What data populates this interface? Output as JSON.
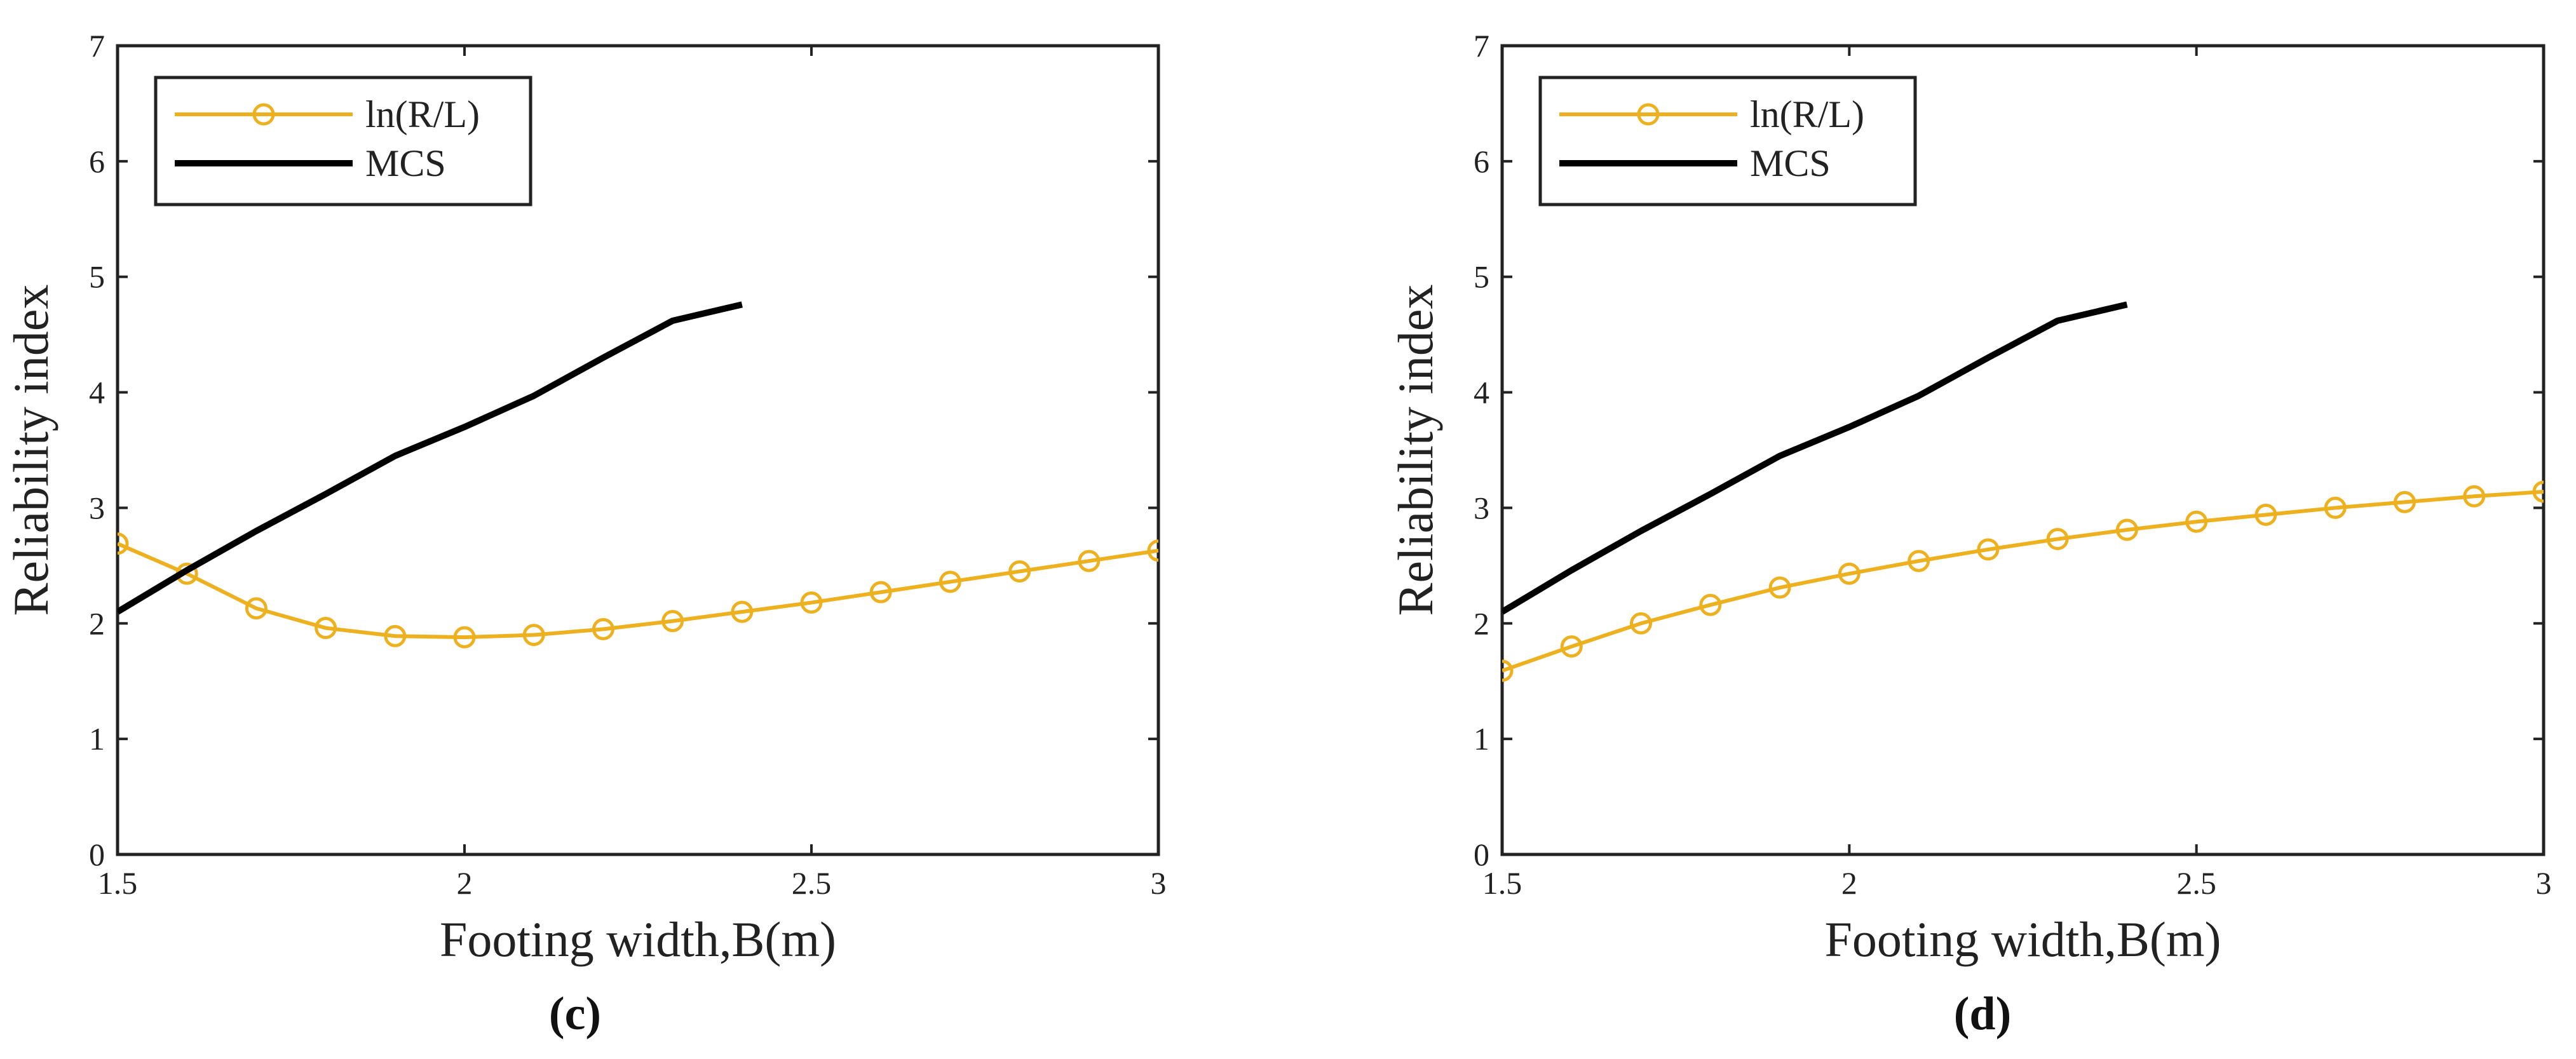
{
  "colors": {
    "lnRL": "#EDB120",
    "mcs": "#000000",
    "axis": "#222222"
  },
  "chart_data": [
    {
      "type": "line",
      "panel_label": "(c)",
      "xlabel": "Footing width,B(m)",
      "ylabel": "Reliability index",
      "xlim": [
        1.5,
        3
      ],
      "ylim": [
        0,
        7
      ],
      "xticks": [
        1.5,
        2,
        2.5,
        3
      ],
      "xtick_labels": [
        "1.5",
        "2",
        "2.5",
        "3"
      ],
      "yticks": [
        0,
        1,
        2,
        3,
        4,
        5,
        6,
        7
      ],
      "ytick_labels": [
        "0",
        "1",
        "2",
        "3",
        "4",
        "5",
        "6",
        "7"
      ],
      "legend": {
        "position": "top-left",
        "entries": [
          "ln(R/L)",
          "MCS"
        ]
      },
      "series": [
        {
          "name": "ln(R/L)",
          "marker": "circle",
          "x": [
            1.5,
            1.6,
            1.7,
            1.8,
            1.9,
            2.0,
            2.1,
            2.2,
            2.3,
            2.4,
            2.5,
            2.6,
            2.7,
            2.8,
            2.9,
            3.0
          ],
          "values": [
            2.69,
            2.43,
            2.13,
            1.96,
            1.89,
            1.88,
            1.9,
            1.95,
            2.02,
            2.1,
            2.18,
            2.27,
            2.36,
            2.45,
            2.54,
            2.63
          ]
        },
        {
          "name": "MCS",
          "marker": "none",
          "x": [
            1.5,
            1.6,
            1.7,
            1.8,
            1.9,
            2.0,
            2.1,
            2.2,
            2.3,
            2.4
          ],
          "values": [
            2.1,
            2.46,
            2.8,
            3.12,
            3.45,
            3.7,
            3.97,
            4.3,
            4.62,
            4.76
          ]
        }
      ]
    },
    {
      "type": "line",
      "panel_label": "(d)",
      "xlabel": "Footing width,B(m)",
      "ylabel": "Reliability index",
      "xlim": [
        1.5,
        3
      ],
      "ylim": [
        0,
        7
      ],
      "xticks": [
        1.5,
        2,
        2.5,
        3
      ],
      "xtick_labels": [
        "1.5",
        "2",
        "2.5",
        "3"
      ],
      "yticks": [
        0,
        1,
        2,
        3,
        4,
        5,
        6,
        7
      ],
      "ytick_labels": [
        "0",
        "1",
        "2",
        "3",
        "4",
        "5",
        "6",
        "7"
      ],
      "legend": {
        "position": "top-left",
        "entries": [
          "ln(R/L)",
          "MCS"
        ]
      },
      "series": [
        {
          "name": "ln(R/L)",
          "marker": "circle",
          "x": [
            1.5,
            1.6,
            1.7,
            1.8,
            1.9,
            2.0,
            2.1,
            2.2,
            2.3,
            2.4,
            2.5,
            2.6,
            2.7,
            2.8,
            2.9,
            3.0
          ],
          "values": [
            1.59,
            1.8,
            2.0,
            2.16,
            2.31,
            2.43,
            2.54,
            2.64,
            2.73,
            2.81,
            2.88,
            2.94,
            3.0,
            3.05,
            3.1,
            3.14
          ]
        },
        {
          "name": "MCS",
          "marker": "none",
          "x": [
            1.5,
            1.6,
            1.7,
            1.8,
            1.9,
            2.0,
            2.1,
            2.2,
            2.3,
            2.4
          ],
          "values": [
            2.1,
            2.46,
            2.8,
            3.12,
            3.45,
            3.7,
            3.97,
            4.3,
            4.62,
            4.76
          ]
        }
      ]
    }
  ]
}
